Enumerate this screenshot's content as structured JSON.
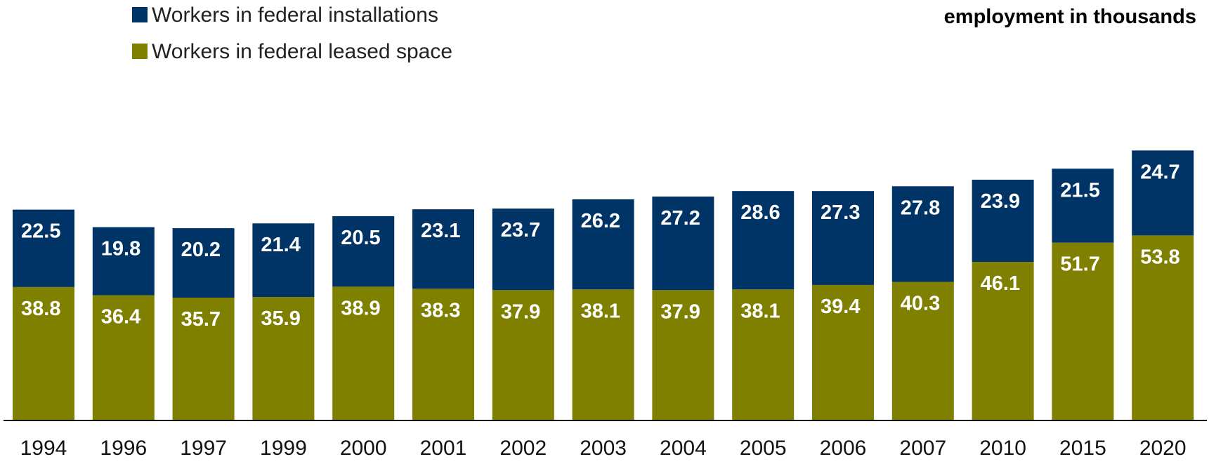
{
  "chart_data": {
    "type": "bar",
    "stacked": true,
    "unit_label": "employment in thousands",
    "categories": [
      "1994",
      "1996",
      "1997",
      "1999",
      "2000",
      "2001",
      "2002",
      "2003",
      "2004",
      "2005",
      "2006",
      "2007",
      "2010",
      "2015",
      "2020"
    ],
    "series": [
      {
        "name": "Workers in federal leased space",
        "color": "#808000",
        "values": [
          38.8,
          36.4,
          35.7,
          35.9,
          38.9,
          38.3,
          37.9,
          38.1,
          37.9,
          38.1,
          39.4,
          40.3,
          46.1,
          51.7,
          53.8
        ]
      },
      {
        "name": "Workers in federal installations",
        "color": "#003366",
        "values": [
          22.5,
          19.8,
          20.2,
          21.4,
          20.5,
          23.1,
          23.7,
          26.2,
          27.2,
          28.6,
          27.3,
          27.8,
          23.9,
          21.5,
          24.7
        ]
      }
    ],
    "legend_order": [
      "Workers in federal installations",
      "Workers in federal leased space"
    ],
    "legend_position": "top-left",
    "ylim": [
      0,
      80
    ],
    "grid": false,
    "xlabel": "",
    "ylabel": ""
  }
}
